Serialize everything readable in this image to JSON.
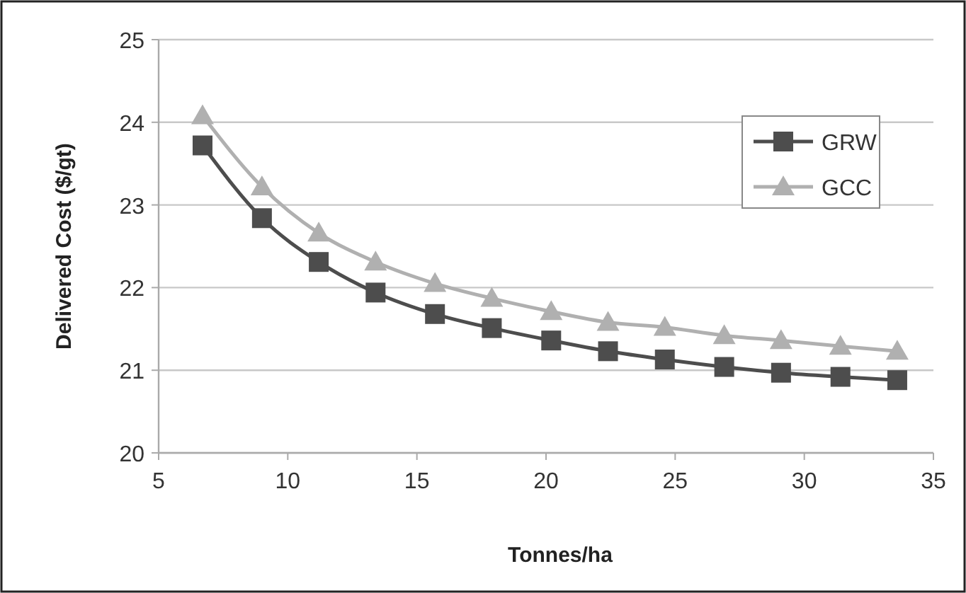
{
  "chart_data": {
    "type": "line",
    "xlabel": "Tonnes/ha",
    "ylabel": "Delivered Cost ($/gt)",
    "x": [
      6.7,
      9.0,
      11.2,
      13.4,
      15.7,
      17.9,
      20.2,
      22.4,
      24.6,
      26.9,
      29.1,
      31.4,
      33.6
    ],
    "series": [
      {
        "name": "GRW",
        "color": "#4d4d4d",
        "marker": "square",
        "values": [
          23.72,
          22.84,
          22.31,
          21.94,
          21.68,
          21.51,
          21.36,
          21.23,
          21.13,
          21.04,
          20.97,
          20.92,
          20.88
        ]
      },
      {
        "name": "GCC",
        "color": "#b0b0b0",
        "marker": "triangle",
        "values": [
          24.08,
          23.22,
          22.66,
          22.31,
          22.05,
          21.87,
          21.71,
          21.58,
          21.52,
          21.42,
          21.36,
          21.29,
          21.23
        ]
      }
    ],
    "xlim": [
      5,
      35
    ],
    "xticks": [
      5,
      10,
      15,
      20,
      25,
      30,
      35
    ],
    "ylim": [
      20,
      25
    ],
    "yticks": [
      20,
      21,
      22,
      23,
      24,
      25
    ],
    "grid": "y",
    "legend": "top right"
  }
}
